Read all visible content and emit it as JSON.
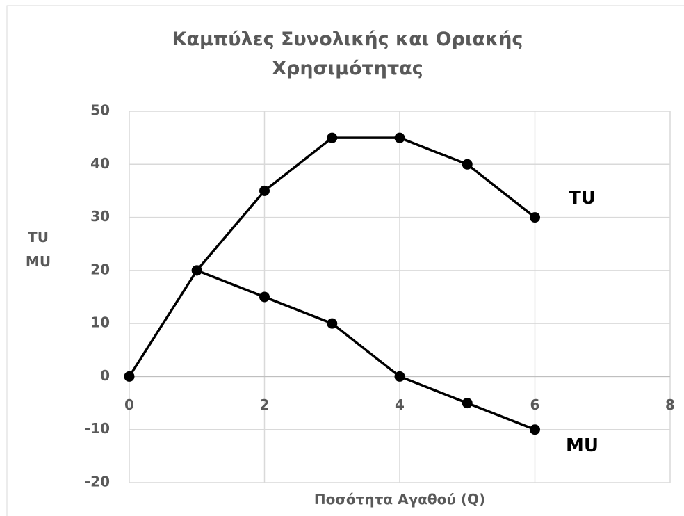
{
  "chart_data": {
    "type": "line",
    "title": "Καμπύλες Συνολικής και Οριακής Χρησιμότητας",
    "y_label": "TU\nMU",
    "x_label": "Ποσότητα Αγαθού (Q)",
    "xlim": [
      0,
      8
    ],
    "xticks": [
      0,
      2,
      4,
      6,
      8
    ],
    "ylim": [
      -20,
      50
    ],
    "yticks": [
      -20,
      -10,
      0,
      10,
      20,
      30,
      40,
      50
    ],
    "grid": true,
    "series": [
      {
        "name": "TU",
        "color": "#000000",
        "x": [
          0,
          1,
          2,
          3,
          4,
          5,
          6
        ],
        "values": [
          0,
          20,
          35,
          45,
          45,
          40,
          30
        ]
      },
      {
        "name": "MU",
        "color": "#000000",
        "x": [
          1,
          2,
          3,
          4,
          5,
          6
        ],
        "values": [
          20,
          15,
          10,
          0,
          -5,
          -10
        ]
      }
    ]
  }
}
